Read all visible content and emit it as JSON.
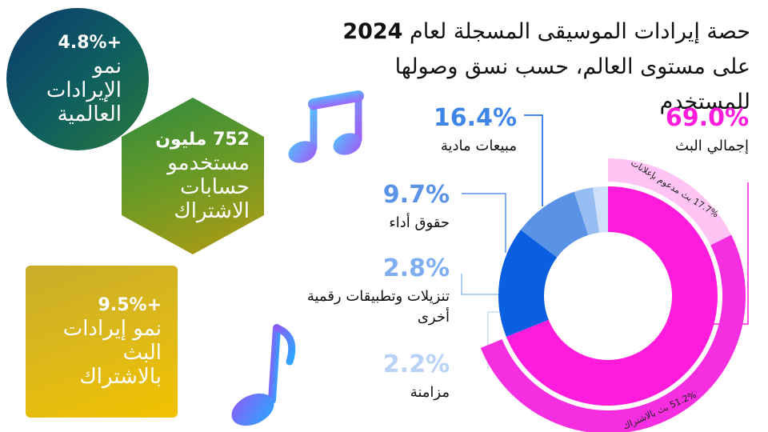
{
  "title_line1_a": "حصة إيرادات الموسيقى المسجلة لعام ",
  "title_line1_b": "2024",
  "title_line2": "على مستوى العالم، حسب نسق وصولها للمستخدم",
  "badges": {
    "global": {
      "value": "+4.8%",
      "label": "نمو الإيرادات العالمية"
    },
    "users": {
      "value": "752 مليون",
      "label": "مستخدمو حسابات الاشتراك"
    },
    "subscription": {
      "value": "+9.5%",
      "label": "نمو إيرادات البث بالاشتراك"
    }
  },
  "callouts": {
    "streaming": {
      "value": "69.0%",
      "label": "إجمالي البث"
    },
    "physical": {
      "value": "16.4%",
      "label": "مبيعات مادية"
    },
    "performance": {
      "value": "9.7%",
      "label": "حقوق أداء"
    },
    "downloads": {
      "value": "2.8%",
      "label": "تنزيلات وتطبيقات رقمية أخرى"
    },
    "sync": {
      "value": "2.2%",
      "label": "مزامنة"
    }
  },
  "chart_data": {
    "type": "pie",
    "style": "donut",
    "segments": [
      {
        "label": "إجمالي البث",
        "value": 69.0,
        "color": "#ff1bdc"
      },
      {
        "label": "مبيعات مادية",
        "value": 16.4,
        "color": "#0a5ee0"
      },
      {
        "label": "حقوق أداء",
        "value": 9.7,
        "color": "#5a93e6"
      },
      {
        "label": "تنزيلات وتطبيقات رقمية أخرى",
        "value": 2.8,
        "color": "#97bdf2"
      },
      {
        "label": "مزامنة",
        "value": 2.2,
        "color": "#cfe0fa"
      }
    ],
    "sub_segments": [
      {
        "label": "بث مدعوم بإعلانات",
        "value": 17.7,
        "display": "17.7%",
        "color": "#ffc4f4"
      },
      {
        "label": "بث بالاشتراك",
        "value": 51.2,
        "display": "51.2%",
        "color": "#f52ee0"
      }
    ],
    "colors": {
      "streaming": "#ff1bdc",
      "physical": "#0a5ee0",
      "performance": "#5a93e6",
      "downloads": "#97bdf2",
      "sync": "#cfe0fa"
    }
  }
}
